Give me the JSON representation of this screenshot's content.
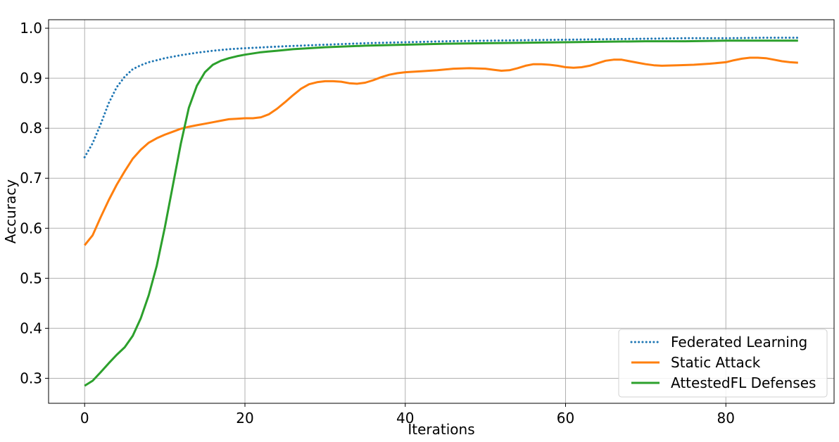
{
  "chart_data": {
    "type": "line",
    "xlabel": "Iterations",
    "ylabel": "Accuracy",
    "xlim": [
      -4.5,
      93.5
    ],
    "ylim": [
      0.25,
      1.017
    ],
    "xticks": [
      0,
      20,
      40,
      60,
      80
    ],
    "yticks": [
      0.3,
      0.4,
      0.5,
      0.6,
      0.7,
      0.8,
      0.9,
      1.0
    ],
    "xtick_labels": [
      "0",
      "20",
      "40",
      "60",
      "80"
    ],
    "ytick_labels": [
      "0.3",
      "0.4",
      "0.5",
      "0.6",
      "0.7",
      "0.8",
      "0.9",
      "1.0"
    ],
    "grid": true,
    "legend_position": "bottom-right",
    "series": [
      {
        "name": "Federated Learning",
        "color": "#1f77b4",
        "style": "dotted",
        "points": [
          [
            0,
            0.742
          ],
          [
            1,
            0.77
          ],
          [
            2,
            0.808
          ],
          [
            3,
            0.85
          ],
          [
            4,
            0.882
          ],
          [
            5,
            0.903
          ],
          [
            6,
            0.918
          ],
          [
            7,
            0.926
          ],
          [
            8,
            0.932
          ],
          [
            9,
            0.936
          ],
          [
            10,
            0.94
          ],
          [
            12,
            0.946
          ],
          [
            14,
            0.951
          ],
          [
            16,
            0.955
          ],
          [
            18,
            0.958
          ],
          [
            20,
            0.96
          ],
          [
            25,
            0.964
          ],
          [
            30,
            0.967
          ],
          [
            35,
            0.97
          ],
          [
            40,
            0.972
          ],
          [
            45,
            0.974
          ],
          [
            50,
            0.975
          ],
          [
            55,
            0.976
          ],
          [
            60,
            0.977
          ],
          [
            65,
            0.978
          ],
          [
            70,
            0.979
          ],
          [
            75,
            0.98
          ],
          [
            80,
            0.98
          ],
          [
            85,
            0.981
          ],
          [
            89,
            0.981
          ]
        ]
      },
      {
        "name": "Static Attack",
        "color": "#ff7f0e",
        "style": "solid",
        "points": [
          [
            0,
            0.566
          ],
          [
            1,
            0.586
          ],
          [
            2,
            0.622
          ],
          [
            3,
            0.656
          ],
          [
            4,
            0.687
          ],
          [
            5,
            0.714
          ],
          [
            6,
            0.739
          ],
          [
            7,
            0.757
          ],
          [
            8,
            0.771
          ],
          [
            9,
            0.78
          ],
          [
            10,
            0.787
          ],
          [
            11,
            0.793
          ],
          [
            12,
            0.799
          ],
          [
            13,
            0.803
          ],
          [
            14,
            0.806
          ],
          [
            15,
            0.809
          ],
          [
            16,
            0.812
          ],
          [
            17,
            0.815
          ],
          [
            18,
            0.818
          ],
          [
            19,
            0.819
          ],
          [
            20,
            0.82
          ],
          [
            21,
            0.82
          ],
          [
            22,
            0.822
          ],
          [
            23,
            0.828
          ],
          [
            24,
            0.839
          ],
          [
            25,
            0.852
          ],
          [
            26,
            0.866
          ],
          [
            27,
            0.879
          ],
          [
            28,
            0.888
          ],
          [
            29,
            0.892
          ],
          [
            30,
            0.894
          ],
          [
            31,
            0.894
          ],
          [
            32,
            0.893
          ],
          [
            33,
            0.89
          ],
          [
            34,
            0.889
          ],
          [
            35,
            0.891
          ],
          [
            36,
            0.896
          ],
          [
            37,
            0.902
          ],
          [
            38,
            0.907
          ],
          [
            39,
            0.91
          ],
          [
            40,
            0.912
          ],
          [
            42,
            0.914
          ],
          [
            44,
            0.916
          ],
          [
            46,
            0.919
          ],
          [
            48,
            0.92
          ],
          [
            50,
            0.919
          ],
          [
            51,
            0.917
          ],
          [
            52,
            0.915
          ],
          [
            53,
            0.916
          ],
          [
            54,
            0.92
          ],
          [
            55,
            0.925
          ],
          [
            56,
            0.928
          ],
          [
            57,
            0.928
          ],
          [
            58,
            0.927
          ],
          [
            59,
            0.925
          ],
          [
            60,
            0.922
          ],
          [
            61,
            0.921
          ],
          [
            62,
            0.922
          ],
          [
            63,
            0.925
          ],
          [
            64,
            0.93
          ],
          [
            65,
            0.935
          ],
          [
            66,
            0.937
          ],
          [
            67,
            0.937
          ],
          [
            68,
            0.934
          ],
          [
            69,
            0.931
          ],
          [
            70,
            0.928
          ],
          [
            71,
            0.926
          ],
          [
            72,
            0.925
          ],
          [
            74,
            0.926
          ],
          [
            76,
            0.927
          ],
          [
            78,
            0.929
          ],
          [
            80,
            0.932
          ],
          [
            81,
            0.936
          ],
          [
            82,
            0.939
          ],
          [
            83,
            0.941
          ],
          [
            84,
            0.941
          ],
          [
            85,
            0.94
          ],
          [
            86,
            0.937
          ],
          [
            87,
            0.934
          ],
          [
            88,
            0.932
          ],
          [
            89,
            0.931
          ]
        ]
      },
      {
        "name": "AttestedFL  Defenses",
        "color": "#2ca02c",
        "style": "solid",
        "points": [
          [
            0,
            0.285
          ],
          [
            1,
            0.295
          ],
          [
            2,
            0.312
          ],
          [
            3,
            0.33
          ],
          [
            4,
            0.347
          ],
          [
            5,
            0.362
          ],
          [
            6,
            0.385
          ],
          [
            7,
            0.42
          ],
          [
            8,
            0.466
          ],
          [
            9,
            0.525
          ],
          [
            10,
            0.601
          ],
          [
            11,
            0.685
          ],
          [
            12,
            0.769
          ],
          [
            13,
            0.841
          ],
          [
            14,
            0.885
          ],
          [
            15,
            0.912
          ],
          [
            16,
            0.927
          ],
          [
            17,
            0.935
          ],
          [
            18,
            0.94
          ],
          [
            19,
            0.944
          ],
          [
            20,
            0.947
          ],
          [
            22,
            0.952
          ],
          [
            24,
            0.955
          ],
          [
            26,
            0.958
          ],
          [
            28,
            0.96
          ],
          [
            30,
            0.962
          ],
          [
            35,
            0.965
          ],
          [
            40,
            0.967
          ],
          [
            45,
            0.969
          ],
          [
            50,
            0.97
          ],
          [
            55,
            0.971
          ],
          [
            60,
            0.972
          ],
          [
            65,
            0.973
          ],
          [
            70,
            0.974
          ],
          [
            75,
            0.974
          ],
          [
            80,
            0.975
          ],
          [
            85,
            0.975
          ],
          [
            89,
            0.975
          ]
        ]
      }
    ]
  }
}
